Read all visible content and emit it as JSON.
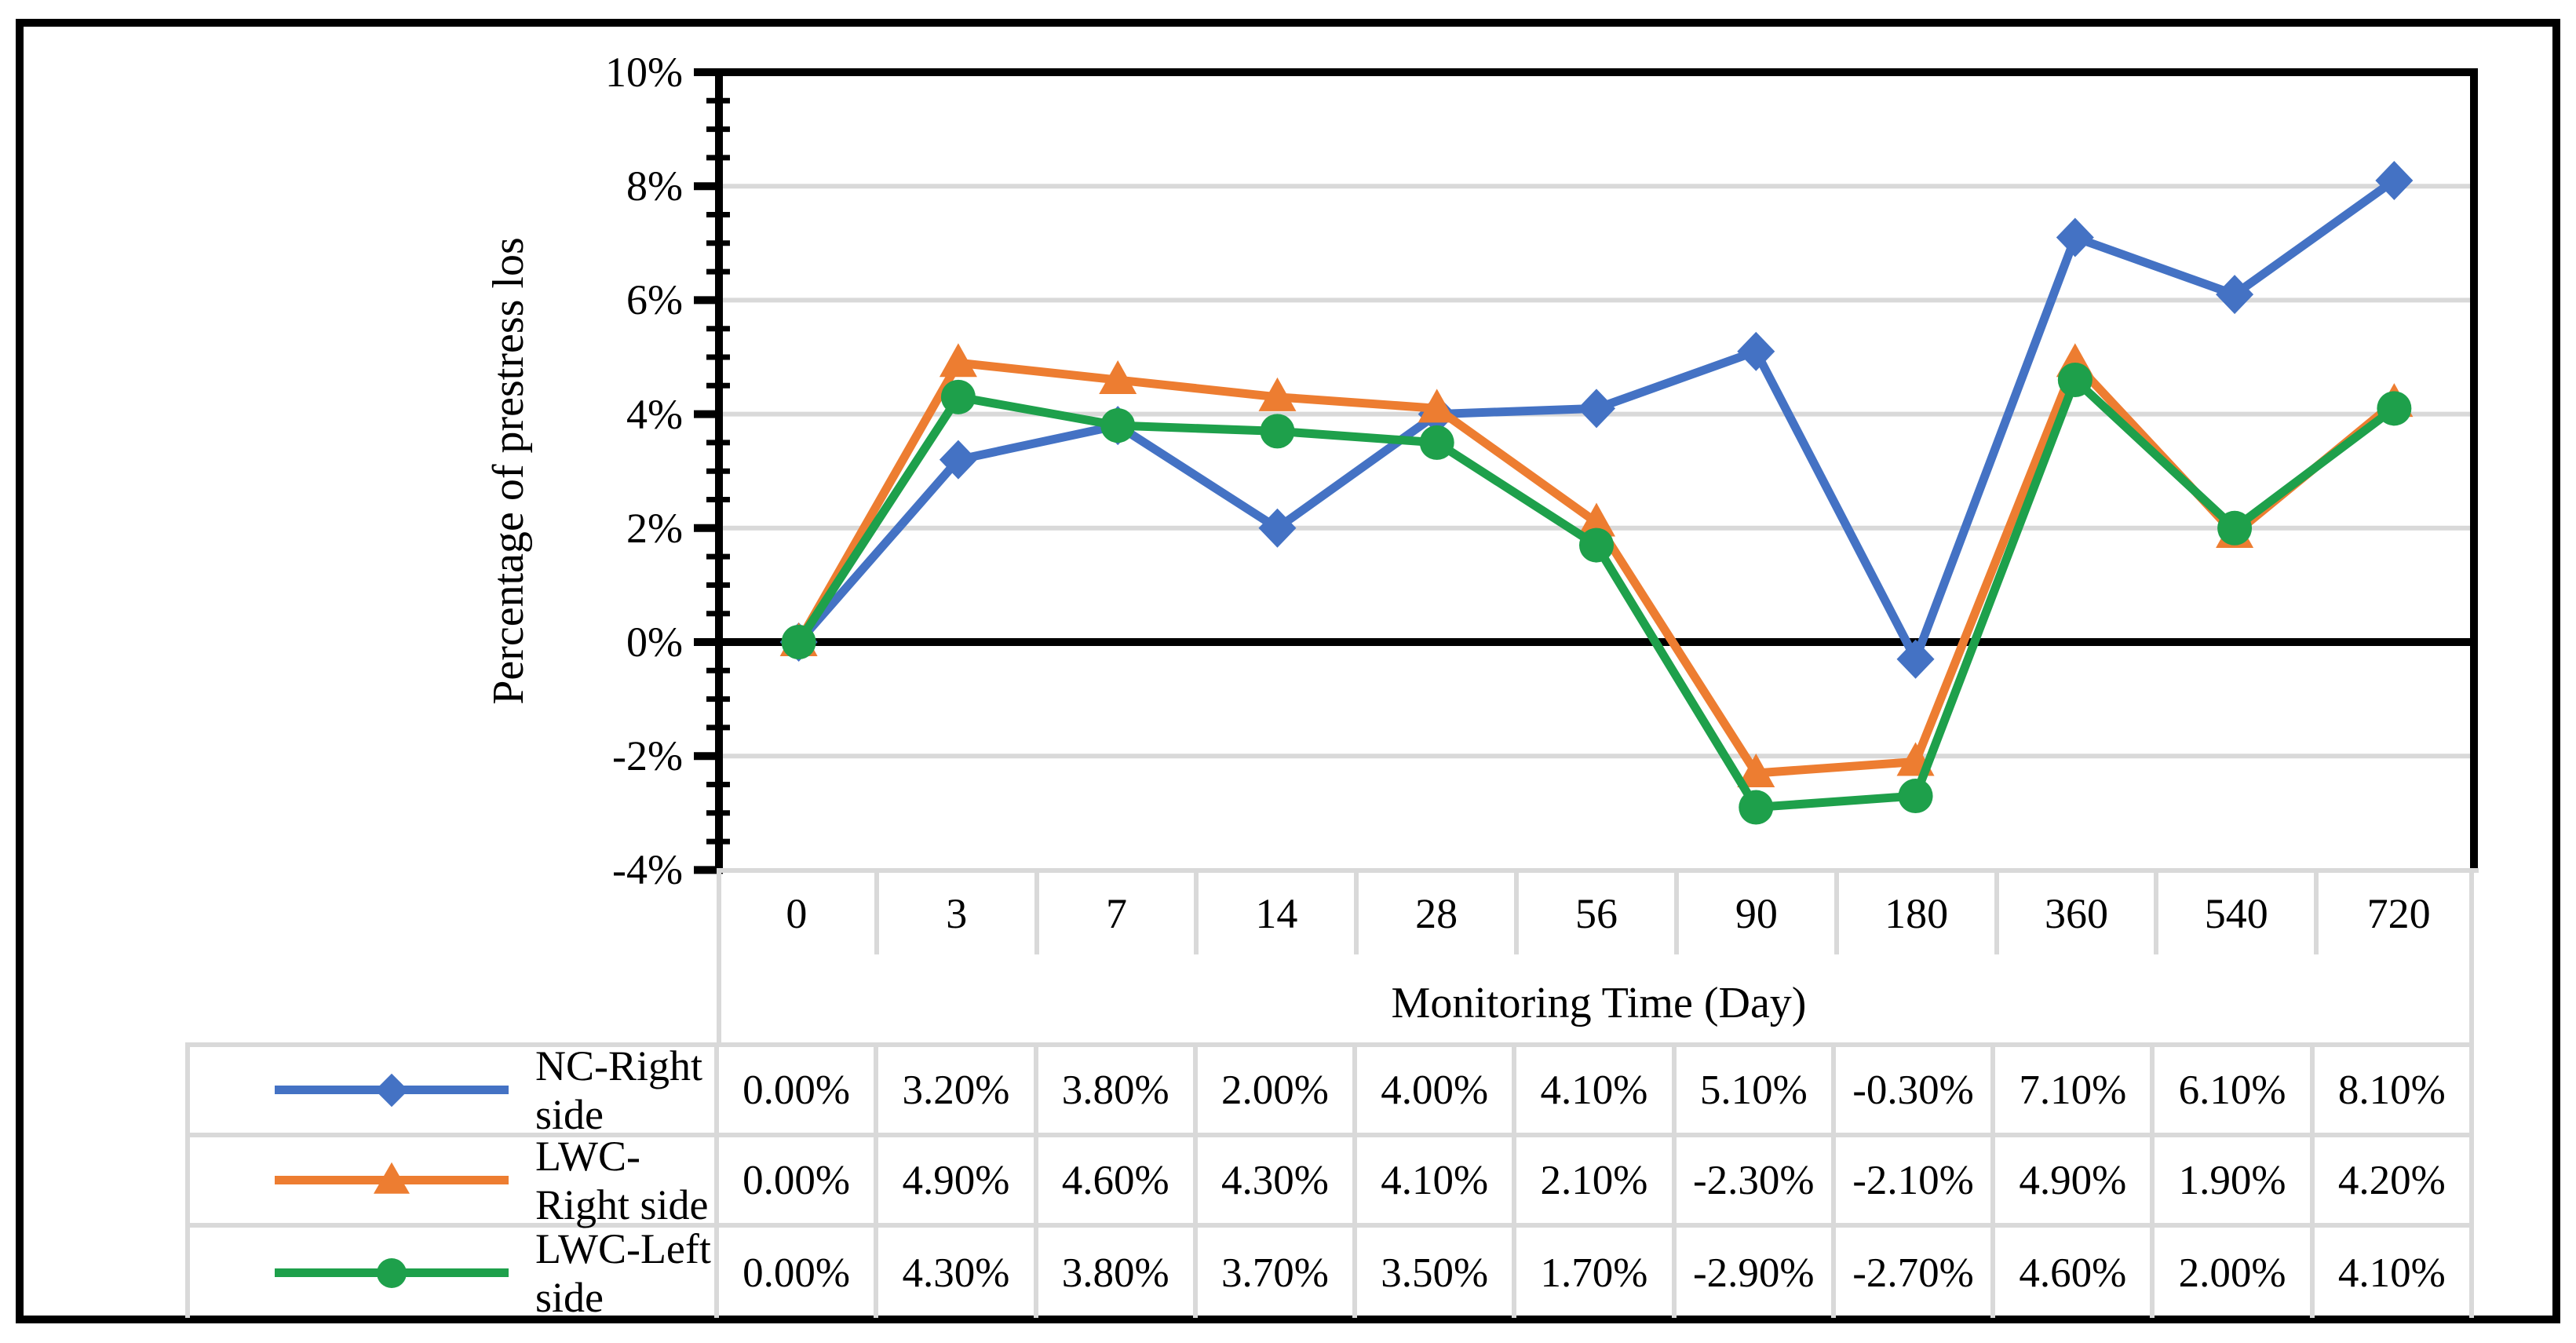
{
  "figure": {
    "background_color": "#FFFFFF",
    "frame_color": "#000000"
  },
  "chart": {
    "y_title": "Percentage of prestress los",
    "x_title": "Monitoring Time (Day)"
  },
  "colors": {
    "gridline": "#D9D9D9",
    "axis": "#000000",
    "table_border": "#D9D9D9",
    "series_blue": "#4472C4",
    "series_orange": "#ED7D31",
    "series_green": "#1EA04B"
  },
  "chart_data": {
    "type": "line",
    "title": "",
    "xlabel": "Monitoring Time (Day)",
    "ylabel": "Percentage of prestress los",
    "categories": [
      "0",
      "3",
      "7",
      "14",
      "28",
      "56",
      "90",
      "180",
      "360",
      "540",
      "720"
    ],
    "ylim": [
      -4,
      10
    ],
    "y_major_step": 2,
    "y_minor_step": 0.5,
    "grid": true,
    "gridlines_at": [
      8,
      6,
      4,
      2,
      -2
    ],
    "zero_line": true,
    "legend_position": "table-left",
    "y_ticks": [
      {
        "value": 10,
        "label": "10%"
      },
      {
        "value": 8,
        "label": "8%"
      },
      {
        "value": 6,
        "label": "6%"
      },
      {
        "value": 4,
        "label": "4%"
      },
      {
        "value": 2,
        "label": "2%"
      },
      {
        "value": 0,
        "label": "0%"
      },
      {
        "value": -2,
        "label": "-2%"
      },
      {
        "value": -4,
        "label": "-4%"
      }
    ],
    "series": [
      {
        "name": "NC-Right side",
        "marker": "diamond",
        "color": "#4472C4",
        "values": [
          0.0,
          3.2,
          3.8,
          2.0,
          4.0,
          4.1,
          5.1,
          -0.3,
          7.1,
          6.1,
          8.1
        ],
        "cells": [
          "0.00%",
          "3.20%",
          "3.80%",
          "2.00%",
          "4.00%",
          "4.10%",
          "5.10%",
          "-0.30%",
          "7.10%",
          "6.10%",
          "8.10%"
        ]
      },
      {
        "name": "LWC-Right side",
        "marker": "triangle",
        "color": "#ED7D31",
        "values": [
          0.0,
          4.9,
          4.6,
          4.3,
          4.1,
          2.1,
          -2.3,
          -2.1,
          4.9,
          1.9,
          4.2
        ],
        "cells": [
          "0.00%",
          "4.90%",
          "4.60%",
          "4.30%",
          "4.10%",
          "2.10%",
          "-2.30%",
          "-2.10%",
          "4.90%",
          "1.90%",
          "4.20%"
        ]
      },
      {
        "name": "LWC-Left side",
        "marker": "circle",
        "color": "#1EA04B",
        "values": [
          0.0,
          4.3,
          3.8,
          3.7,
          3.5,
          1.7,
          -2.9,
          -2.7,
          4.6,
          2.0,
          4.1
        ],
        "cells": [
          "0.00%",
          "4.30%",
          "3.80%",
          "3.70%",
          "3.50%",
          "1.70%",
          "-2.90%",
          "-2.70%",
          "4.60%",
          "2.00%",
          "4.10%"
        ]
      }
    ]
  }
}
